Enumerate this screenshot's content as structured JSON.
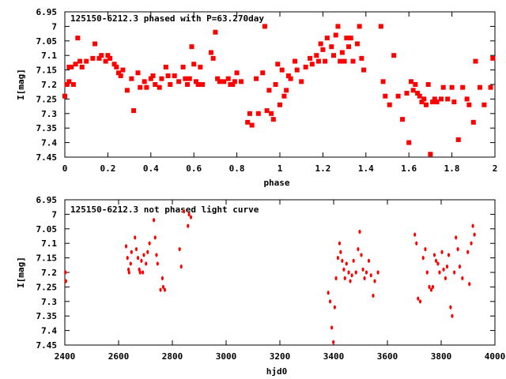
{
  "chart_data": [
    {
      "type": "scatter",
      "title": "125150-6212.3 phased with P=63.270day",
      "xlabel": "phase",
      "ylabel": "I[mag]",
      "xlim": [
        0,
        2
      ],
      "ylim": [
        7.45,
        6.95
      ],
      "y_inverted": true,
      "xticks": [
        0,
        0.2,
        0.4,
        0.6,
        0.8,
        1,
        1.2,
        1.4,
        1.6,
        1.8,
        2
      ],
      "xtick_labels": [
        "0",
        "0.2",
        "0.4",
        "0.6",
        "0.8",
        "1",
        "1.2",
        "1.4",
        "1.6",
        "1.8",
        "2"
      ],
      "yticks": [
        6.95,
        7,
        7.05,
        7.1,
        7.15,
        7.2,
        7.25,
        7.3,
        7.35,
        7.4,
        7.45
      ],
      "ytick_labels": [
        "6.95",
        "7",
        "7.05",
        "7.1",
        "7.15",
        "7.2",
        "7.25",
        "7.3",
        "7.35",
        "7.4",
        "7.45"
      ],
      "marker_color": "#ff0000",
      "series": [
        {
          "x": [
            0.0,
            0.01,
            0.02,
            0.02,
            0.03,
            0.04,
            0.05,
            0.06,
            0.07,
            0.08,
            0.1,
            0.13,
            0.14,
            0.16,
            0.17,
            0.19,
            0.2,
            0.21,
            0.23,
            0.24,
            0.25,
            0.26,
            0.27,
            0.29,
            0.31,
            0.32,
            0.34,
            0.35,
            0.37,
            0.38,
            0.4,
            0.41,
            0.42,
            0.44,
            0.45,
            0.47,
            0.48,
            0.49,
            0.51,
            0.53,
            0.55,
            0.56,
            0.57,
            0.58,
            0.59,
            0.6,
            0.61,
            0.62,
            0.63,
            0.64,
            0.68,
            0.69,
            0.7,
            0.71,
            0.72,
            0.74,
            0.76,
            0.77,
            0.78,
            0.79,
            0.8,
            0.82,
            0.85,
            0.86,
            0.87,
            0.89,
            0.9,
            0.92,
            0.93,
            0.94,
            0.95,
            0.96,
            0.97,
            0.98,
            0.99,
            1.0,
            1.01,
            1.02,
            1.03,
            1.04,
            1.05,
            1.07,
            1.08,
            1.1,
            1.12,
            1.14,
            1.15,
            1.17,
            1.18,
            1.19,
            1.2,
            1.21,
            1.22,
            1.24,
            1.25,
            1.26,
            1.27,
            1.28,
            1.29,
            1.3,
            1.31,
            1.32,
            1.33,
            1.34,
            1.36,
            1.37,
            1.38,
            1.39,
            1.47,
            1.48,
            1.49,
            1.51,
            1.53,
            1.55,
            1.57,
            1.59,
            1.6,
            1.61,
            1.62,
            1.63,
            1.64,
            1.65,
            1.66,
            1.67,
            1.68,
            1.69,
            1.7,
            1.71,
            1.72,
            1.73,
            1.75,
            1.76,
            1.78,
            1.8,
            1.81,
            1.83,
            1.85,
            1.87,
            1.88,
            1.9,
            1.91,
            1.93,
            1.95,
            1.98,
            1.99
          ],
          "y": [
            7.24,
            7.2,
            7.14,
            7.19,
            7.14,
            7.2,
            7.13,
            7.04,
            7.12,
            7.14,
            7.12,
            7.11,
            7.06,
            7.11,
            7.1,
            7.12,
            7.1,
            7.11,
            7.13,
            7.14,
            7.16,
            7.17,
            7.15,
            7.22,
            7.18,
            7.29,
            7.16,
            7.21,
            7.19,
            7.21,
            7.18,
            7.17,
            7.2,
            7.21,
            7.18,
            7.14,
            7.17,
            7.2,
            7.17,
            7.19,
            7.14,
            7.18,
            7.2,
            7.18,
            7.07,
            7.13,
            7.19,
            7.2,
            7.14,
            7.2,
            7.09,
            7.11,
            7.02,
            7.18,
            7.19,
            7.19,
            7.18,
            7.2,
            7.2,
            7.19,
            7.16,
            7.19,
            7.33,
            7.3,
            7.34,
            7.18,
            7.3,
            7.16,
            7.0,
            7.29,
            7.22,
            7.3,
            7.32,
            7.2,
            7.13,
            7.27,
            7.15,
            7.24,
            7.22,
            7.17,
            7.18,
            7.12,
            7.15,
            7.19,
            7.14,
            7.11,
            7.13,
            7.1,
            7.12,
            7.06,
            7.08,
            7.12,
            7.04,
            7.07,
            7.1,
            7.03,
            7.0,
            7.12,
            7.09,
            7.12,
            7.04,
            7.07,
            7.04,
            7.12,
            7.06,
            7.0,
            7.11,
            7.15,
            7.0,
            7.19,
            7.24,
            7.27,
            7.1,
            7.24,
            7.32,
            7.23,
            7.4,
            7.19,
            7.22,
            7.2,
            7.23,
            7.24,
            7.26,
            7.25,
            7.27,
            7.2,
            7.44,
            7.26,
            7.25,
            7.26,
            7.25,
            7.21,
            7.25,
            7.21,
            7.26,
            7.39,
            7.21,
            7.25,
            7.27,
            7.33,
            7.12,
            7.21,
            7.27,
            7.21,
            7.11
          ]
        }
      ],
      "data_point_count": 141,
      "grid": false,
      "legend": "none"
    },
    {
      "type": "scatter",
      "title": "125150-6212.3 not phased light curve",
      "xlabel": "hjd0",
      "ylabel": "I[mag]",
      "xlim": [
        2400,
        4000
      ],
      "ylim": [
        7.45,
        6.95
      ],
      "y_inverted": true,
      "xticks": [
        2400,
        2600,
        2800,
        3000,
        3200,
        3400,
        3600,
        3800,
        4000
      ],
      "xtick_labels": [
        "2400",
        "2600",
        "2800",
        "3000",
        "3200",
        "3400",
        "3600",
        "3800",
        "4000"
      ],
      "yticks": [
        6.95,
        7,
        7.05,
        7.1,
        7.15,
        7.2,
        7.25,
        7.3,
        7.35,
        7.4,
        7.45
      ],
      "ytick_labels": [
        "6.95",
        "7",
        "7.05",
        "7.1",
        "7.15",
        "7.2",
        "7.25",
        "7.3",
        "7.35",
        "7.4",
        "7.45"
      ],
      "marker_color": "#ff0000",
      "series": [
        {
          "x": [
            2402,
            2404,
            2628,
            2633,
            2637,
            2639,
            2645,
            2648,
            2661,
            2666,
            2672,
            2677,
            2680,
            2685,
            2690,
            2694,
            2702,
            2708,
            2715,
            2731,
            2736,
            2741,
            2745,
            2756,
            2763,
            2766,
            2772,
            2827,
            2833,
            2843,
            2858,
            2862,
            2869,
            3380,
            3387,
            3393,
            3399,
            3404,
            3409,
            3416,
            3422,
            3426,
            3432,
            3438,
            3442,
            3448,
            3456,
            3462,
            3468,
            3474,
            3483,
            3491,
            3497,
            3503,
            3509,
            3515,
            3522,
            3531,
            3539,
            3547,
            3553,
            3565,
            3702,
            3708,
            3714,
            3722,
            3733,
            3741,
            3748,
            3756,
            3763,
            3769,
            3775,
            3781,
            3788,
            3794,
            3803,
            3809,
            3816,
            3822,
            3828,
            3835,
            3841,
            3849,
            3855,
            3862,
            3869,
            3879,
            3899,
            3905,
            3912,
            3918,
            3924
          ],
          "y": [
            7.2,
            7.23,
            7.11,
            7.15,
            7.19,
            7.2,
            7.17,
            7.13,
            7.08,
            7.12,
            7.15,
            7.19,
            7.2,
            7.16,
            7.2,
            7.14,
            7.17,
            7.13,
            7.1,
            7.02,
            7.08,
            7.14,
            7.17,
            7.26,
            7.22,
            7.25,
            7.26,
            7.12,
            7.18,
            6.99,
            7.04,
            7.0,
            7.01,
            7.27,
            7.3,
            7.39,
            7.44,
            7.32,
            7.22,
            7.15,
            7.1,
            7.13,
            7.16,
            7.19,
            7.22,
            7.17,
            7.2,
            7.23,
            7.21,
            7.16,
            7.2,
            7.12,
            7.06,
            7.14,
            7.19,
            7.22,
            7.2,
            7.16,
            7.21,
            7.28,
            7.23,
            7.2,
            7.07,
            7.1,
            7.29,
            7.3,
            7.15,
            7.12,
            7.2,
            7.25,
            7.26,
            7.25,
            7.14,
            7.16,
            7.17,
            7.2,
            7.13,
            7.19,
            7.22,
            7.18,
            7.14,
            7.32,
            7.35,
            7.2,
            7.08,
            7.12,
            7.18,
            7.22,
            7.13,
            7.24,
            7.1,
            7.04,
            7.07
          ]
        }
      ],
      "data_point_count": 93,
      "grid": false,
      "legend": "none"
    }
  ]
}
